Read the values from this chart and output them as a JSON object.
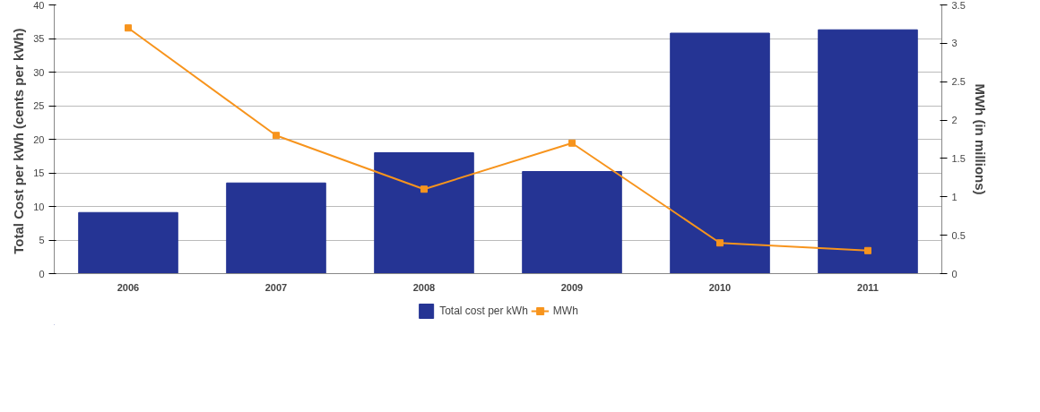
{
  "chart_data": {
    "type": "bar",
    "categories": [
      "2006",
      "2007",
      "2008",
      "2009",
      "2010",
      "2011"
    ],
    "ylabel": "Total Cost per kWh  (cents per kWh)",
    "y2label": "MWh (in millions)",
    "ylim": [
      0,
      40
    ],
    "yticks": [
      0,
      5,
      10,
      15,
      20,
      25,
      30,
      35,
      40
    ],
    "y2lim": [
      0,
      3.5
    ],
    "y2ticks": [
      0,
      0.5,
      1,
      1.5,
      2,
      2.5,
      3,
      3.5
    ],
    "grid": "y",
    "legend": "bottom",
    "series": [
      {
        "name": "Total cost per kWh",
        "color": "#253494",
        "values": [
          9.1,
          13.5,
          18.0,
          15.2,
          35.8,
          36.3
        ]
      },
      {
        "name": "MWh",
        "type": "line",
        "axis": "y2",
        "color": "#f7941d",
        "marker": "square",
        "values": [
          3.2,
          1.8,
          1.1,
          1.7,
          0.4,
          0.3
        ]
      }
    ]
  }
}
